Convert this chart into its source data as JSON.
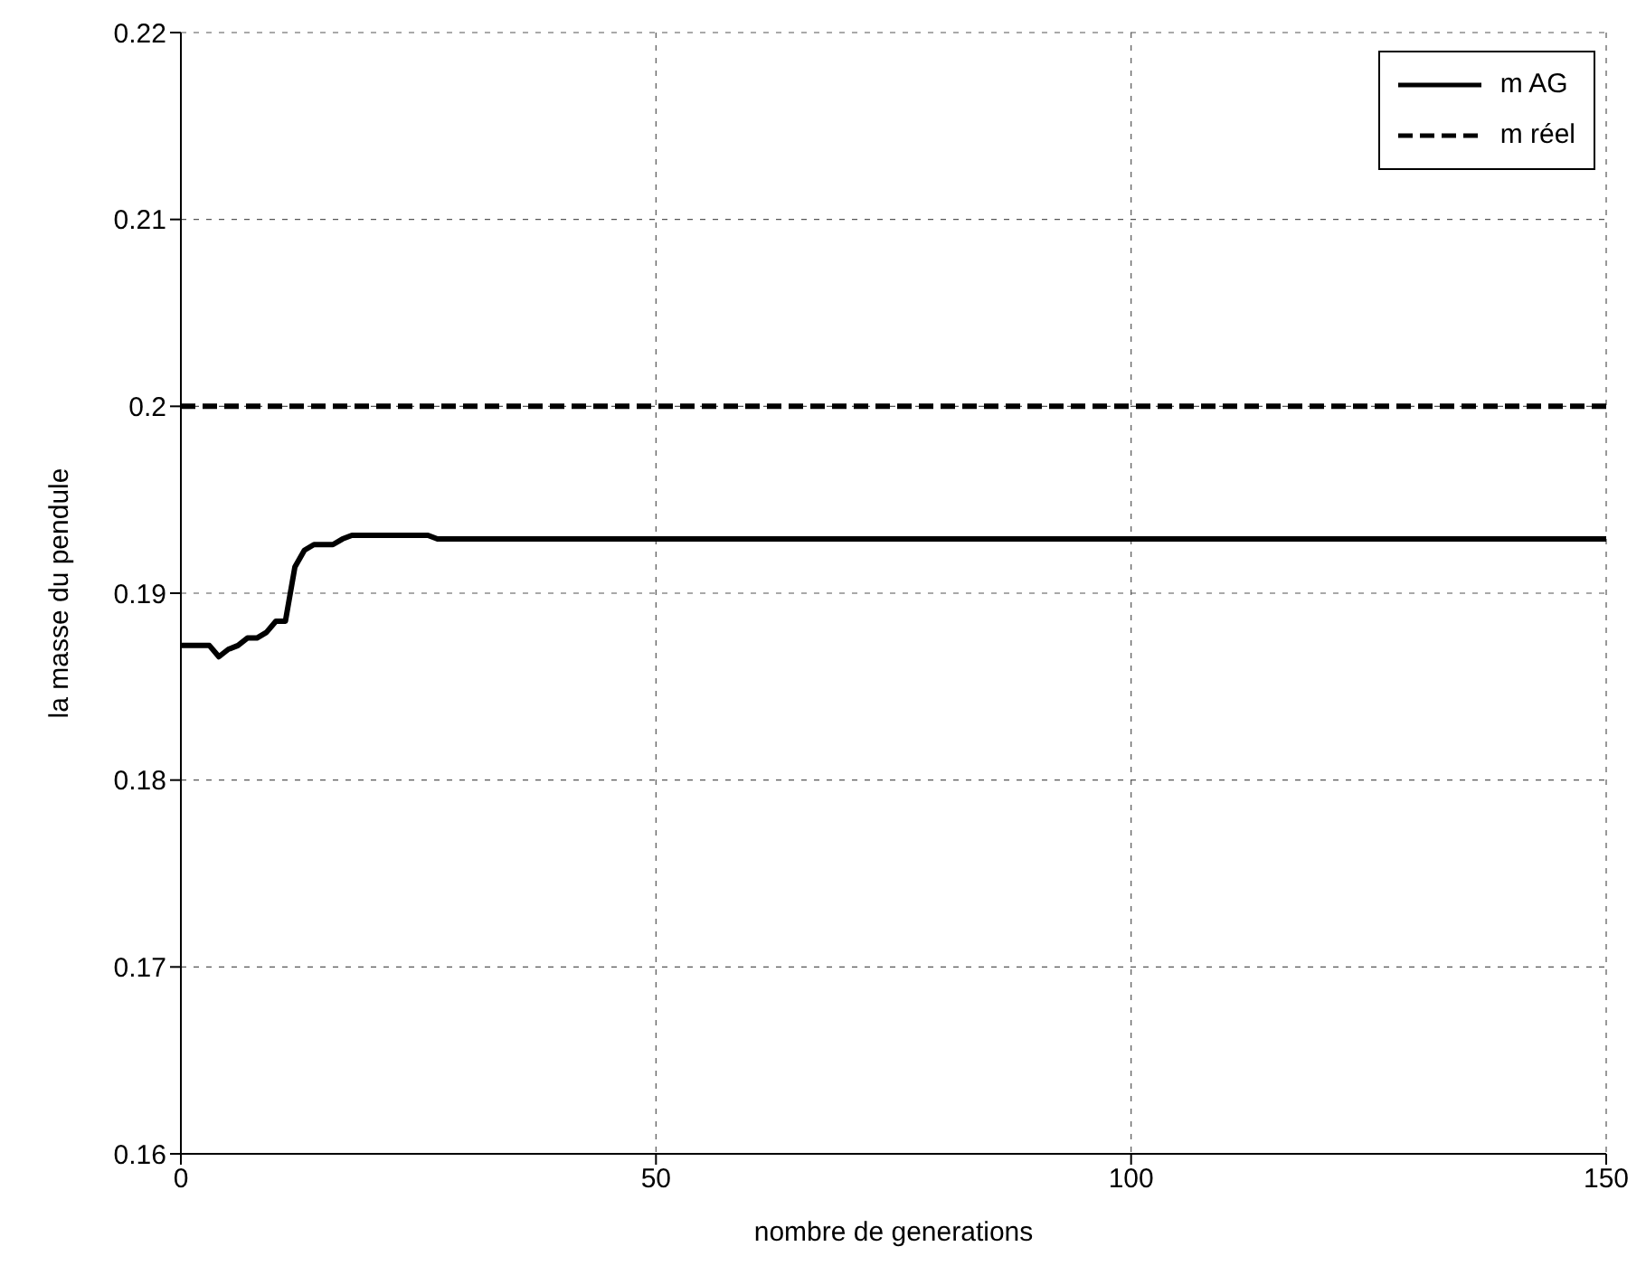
{
  "chart_data": {
    "type": "line",
    "xlabel": "nombre de generations",
    "ylabel": "la masse du pendule",
    "xlim": [
      0,
      150
    ],
    "xticks": [
      0,
      50,
      100,
      150
    ],
    "ylim": [
      0.16,
      0.22
    ],
    "yticks": [
      0.16,
      0.17,
      0.18,
      0.19,
      0.2,
      0.21,
      0.22
    ],
    "grid": true,
    "legend": "top right",
    "series": [
      {
        "name": "m AG",
        "color": "#000000",
        "line_style": "solid",
        "x": [
          0,
          3,
          4,
          5,
          6,
          7,
          8,
          9,
          10,
          11,
          12,
          13,
          14,
          16,
          17,
          18,
          26,
          27,
          150
        ],
        "values": [
          0.1872,
          0.1872,
          0.1866,
          0.187,
          0.1872,
          0.1876,
          0.1876,
          0.1879,
          0.1885,
          0.1885,
          0.1914,
          0.1923,
          0.1926,
          0.1926,
          0.1929,
          0.1931,
          0.1931,
          0.1929,
          0.1929
        ]
      },
      {
        "name": "m réel",
        "color": "#000000",
        "line_style": "dashed",
        "x": [
          0,
          150
        ],
        "values": [
          0.2,
          0.2
        ]
      }
    ]
  }
}
